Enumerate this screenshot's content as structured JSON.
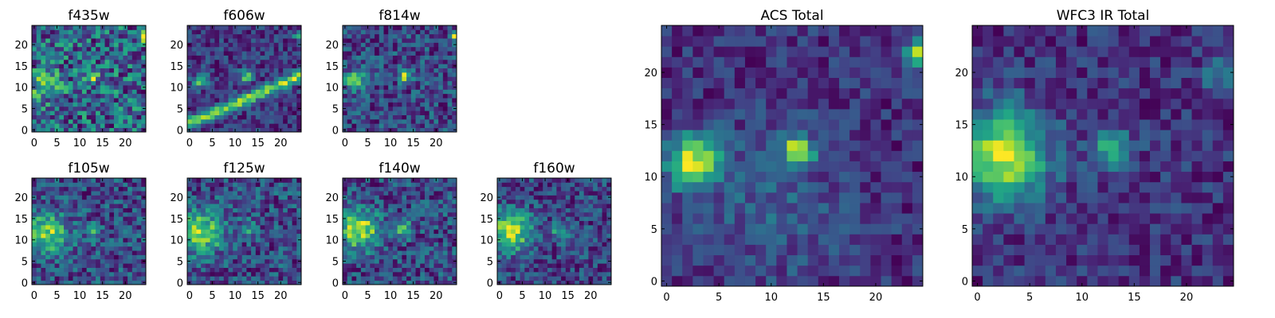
{
  "chart_data": [
    {
      "type": "heatmap",
      "title": "f435w",
      "xlim": [
        0,
        25
      ],
      "ylim": [
        0,
        25
      ],
      "xticks": [
        0,
        5,
        10,
        15,
        20
      ],
      "yticks": [
        0,
        5,
        10,
        15,
        20
      ],
      "colormap": "viridis",
      "size": [
        25,
        25
      ],
      "seed": 435,
      "features": [
        {
          "x": 2,
          "y": 11,
          "amp": 0.35,
          "sigma": 2.5
        },
        {
          "x": 12.5,
          "y": 12.5,
          "amp": 0.45,
          "sigma": 1.2
        },
        {
          "x": 24,
          "y": 22,
          "amp": 0.6,
          "sigma": 0.8
        }
      ],
      "noise": 0.42
    },
    {
      "type": "heatmap",
      "title": "f606w",
      "xlim": [
        0,
        25
      ],
      "ylim": [
        0,
        25
      ],
      "xticks": [
        0,
        5,
        10,
        15,
        20
      ],
      "yticks": [
        0,
        5,
        10,
        15,
        20
      ],
      "colormap": "viridis",
      "size": [
        25,
        25
      ],
      "seed": 606,
      "features": [
        {
          "x": 2.5,
          "y": 11.5,
          "amp": 0.7,
          "sigma": 1.1
        },
        {
          "x": 12.5,
          "y": 12.5,
          "amp": 0.75,
          "sigma": 1.0
        },
        {
          "x": 24,
          "y": 22,
          "amp": 0.7,
          "sigma": 0.7
        }
      ],
      "streak": {
        "x0": 0,
        "y0": 1.5,
        "x1": 25,
        "y1": 13,
        "amp": 0.85,
        "width": 0.9
      },
      "noise": 0.28
    },
    {
      "type": "heatmap",
      "title": "f814w",
      "xlim": [
        0,
        25
      ],
      "ylim": [
        0,
        25
      ],
      "xticks": [
        0,
        5,
        10,
        15,
        20
      ],
      "yticks": [
        0,
        5,
        10,
        15,
        20
      ],
      "colormap": "viridis",
      "size": [
        25,
        25
      ],
      "seed": 814,
      "features": [
        {
          "x": 2.5,
          "y": 11.5,
          "amp": 0.6,
          "sigma": 1.6
        },
        {
          "x": 13,
          "y": 12.5,
          "amp": 0.65,
          "sigma": 1.0
        },
        {
          "x": 24,
          "y": 22,
          "amp": 0.7,
          "sigma": 0.7
        }
      ],
      "noise": 0.3
    },
    {
      "type": "heatmap",
      "title": "f105w",
      "xlim": [
        0,
        25
      ],
      "ylim": [
        0,
        25
      ],
      "xticks": [
        0,
        5,
        10,
        15,
        20
      ],
      "yticks": [
        0,
        5,
        10,
        15,
        20
      ],
      "colormap": "viridis",
      "size": [
        25,
        25
      ],
      "seed": 105,
      "features": [
        {
          "x": 2.5,
          "y": 11.5,
          "amp": 0.65,
          "sigma": 3.2
        },
        {
          "x": 13,
          "y": 12,
          "amp": 0.3,
          "sigma": 1.5
        }
      ],
      "noise": 0.32
    },
    {
      "type": "heatmap",
      "title": "f125w",
      "xlim": [
        0,
        25
      ],
      "ylim": [
        0,
        25
      ],
      "xticks": [
        0,
        5,
        10,
        15,
        20
      ],
      "yticks": [
        0,
        5,
        10,
        15,
        20
      ],
      "colormap": "viridis",
      "size": [
        25,
        25
      ],
      "seed": 125,
      "features": [
        {
          "x": 2.5,
          "y": 12,
          "amp": 0.6,
          "sigma": 3.5
        },
        {
          "x": 13,
          "y": 12.5,
          "amp": 0.35,
          "sigma": 1.4
        }
      ],
      "noise": 0.3
    },
    {
      "type": "heatmap",
      "title": "f140w",
      "xlim": [
        0,
        25
      ],
      "ylim": [
        0,
        25
      ],
      "xticks": [
        0,
        5,
        10,
        15,
        20
      ],
      "yticks": [
        0,
        5,
        10,
        15,
        20
      ],
      "colormap": "viridis",
      "size": [
        25,
        25
      ],
      "seed": 140,
      "features": [
        {
          "x": 3,
          "y": 12.5,
          "amp": 0.7,
          "sigma": 3.2
        },
        {
          "x": 13,
          "y": 12.5,
          "amp": 0.45,
          "sigma": 1.3
        }
      ],
      "noise": 0.3
    },
    {
      "type": "heatmap",
      "title": "f160w",
      "xlim": [
        0,
        25
      ],
      "ylim": [
        0,
        25
      ],
      "xticks": [
        0,
        5,
        10,
        15,
        20
      ],
      "yticks": [
        0,
        5,
        10,
        15,
        20
      ],
      "colormap": "viridis",
      "size": [
        25,
        25
      ],
      "seed": 160,
      "features": [
        {
          "x": 2.5,
          "y": 12,
          "amp": 0.75,
          "sigma": 3.2
        },
        {
          "x": 13.5,
          "y": 12,
          "amp": 0.5,
          "sigma": 1.4
        }
      ],
      "noise": 0.3
    },
    {
      "type": "heatmap",
      "title": "ACS Total",
      "xlim": [
        0,
        25
      ],
      "ylim": [
        0,
        25
      ],
      "xticks": [
        0,
        5,
        10,
        15,
        20
      ],
      "yticks": [
        0,
        5,
        10,
        15,
        20
      ],
      "colormap": "viridis",
      "size": [
        25,
        25
      ],
      "seed": 1001,
      "features": [
        {
          "x": 2.5,
          "y": 11.5,
          "amp": 0.75,
          "sigma": 1.8
        },
        {
          "x": 12.5,
          "y": 12.5,
          "amp": 0.85,
          "sigma": 1.0
        },
        {
          "x": 24,
          "y": 22,
          "amp": 0.9,
          "sigma": 0.7
        },
        {
          "x": 10,
          "y": 7,
          "amp": 0.15,
          "sigma": 5
        }
      ],
      "noise": 0.18
    },
    {
      "type": "heatmap",
      "title": "WFC3 IR Total",
      "xlim": [
        0,
        25
      ],
      "ylim": [
        0,
        25
      ],
      "xticks": [
        0,
        5,
        10,
        15,
        20
      ],
      "yticks": [
        0,
        5,
        10,
        15,
        20
      ],
      "colormap": "viridis",
      "size": [
        25,
        25
      ],
      "seed": 2002,
      "features": [
        {
          "x": 2.5,
          "y": 12,
          "amp": 0.8,
          "sigma": 3.0
        },
        {
          "x": 13,
          "y": 12.5,
          "amp": 0.55,
          "sigma": 1.3
        },
        {
          "x": 24,
          "y": 20,
          "amp": 0.35,
          "sigma": 1.5
        }
      ],
      "noise": 0.2
    }
  ]
}
